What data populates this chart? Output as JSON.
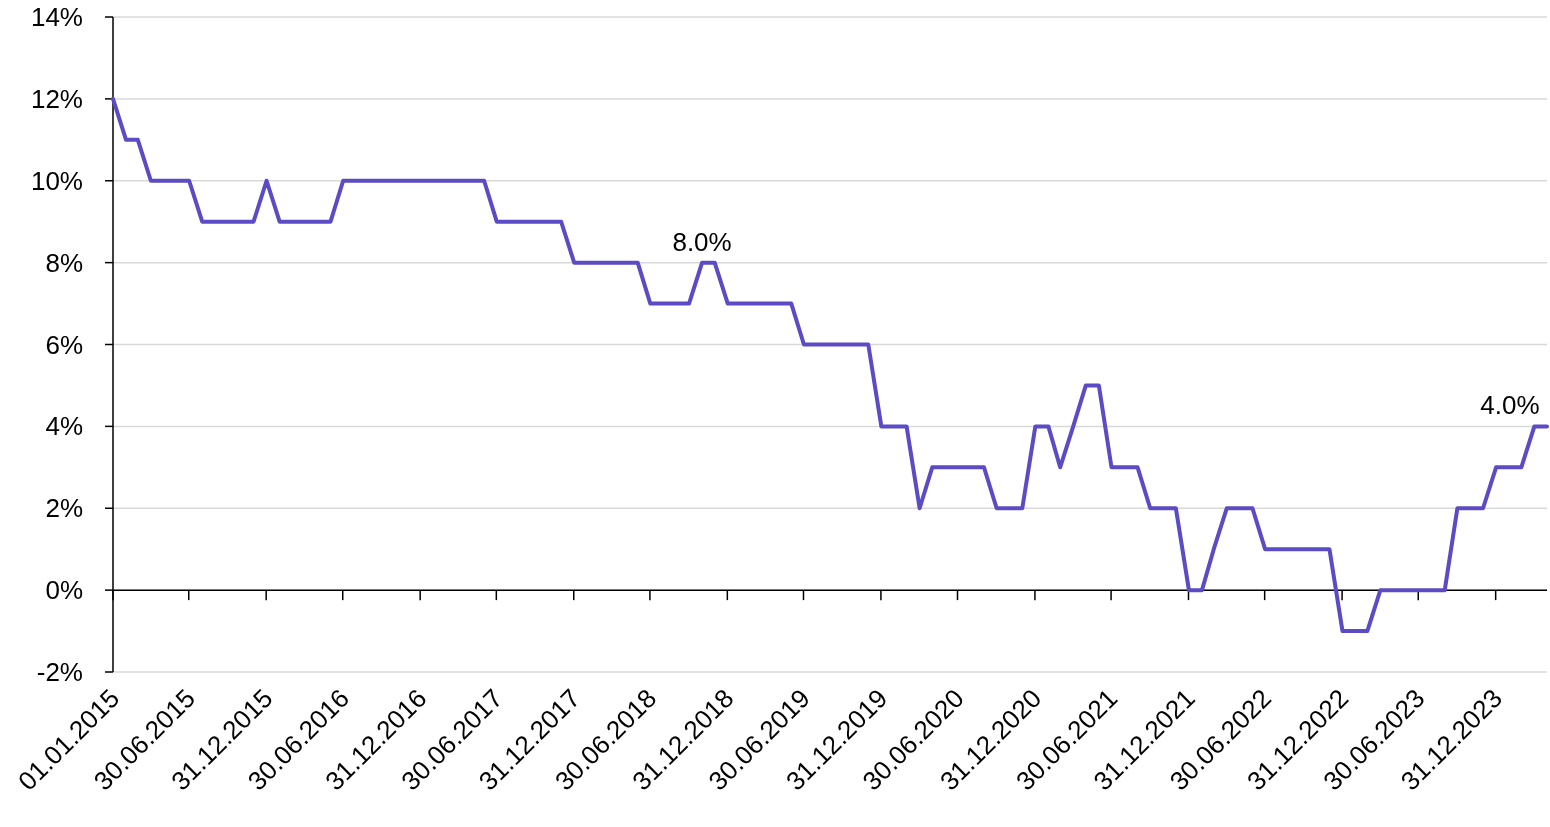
{
  "chart_data": {
    "type": "line",
    "x": [
      "2015-01",
      "2015-02",
      "2015-03",
      "2015-04",
      "2015-05",
      "2015-06",
      "2015-07",
      "2015-08",
      "2015-09",
      "2015-10",
      "2015-11",
      "2015-12",
      "2016-01",
      "2016-02",
      "2016-03",
      "2016-04",
      "2016-05",
      "2016-06",
      "2016-07",
      "2016-08",
      "2016-09",
      "2016-10",
      "2016-11",
      "2016-12",
      "2017-01",
      "2017-02",
      "2017-03",
      "2017-04",
      "2017-05",
      "2017-06",
      "2017-07",
      "2017-08",
      "2017-09",
      "2017-10",
      "2017-11",
      "2017-12",
      "2018-01",
      "2018-02",
      "2018-03",
      "2018-04",
      "2018-05",
      "2018-06",
      "2018-07",
      "2018-08",
      "2018-09",
      "2018-10",
      "2018-11",
      "2018-12",
      "2019-01",
      "2019-02",
      "2019-03",
      "2019-04",
      "2019-05",
      "2019-06",
      "2019-07",
      "2019-08",
      "2019-09",
      "2019-10",
      "2019-11",
      "2019-12",
      "2020-01",
      "2020-02",
      "2020-03",
      "2020-04",
      "2020-05",
      "2020-06",
      "2020-07",
      "2020-08",
      "2020-09",
      "2020-10",
      "2020-11",
      "2020-12",
      "2021-01",
      "2021-02",
      "2021-03",
      "2021-04",
      "2021-05",
      "2021-06",
      "2021-07",
      "2021-08",
      "2021-09",
      "2021-10",
      "2021-11",
      "2021-12",
      "2022-01",
      "2022-02",
      "2022-03",
      "2022-04",
      "2022-05",
      "2022-06",
      "2022-07",
      "2022-08",
      "2022-09",
      "2022-10",
      "2022-11",
      "2022-12",
      "2023-01",
      "2023-02",
      "2023-03",
      "2023-04",
      "2023-05",
      "2023-06",
      "2023-07",
      "2023-08",
      "2023-09",
      "2023-10",
      "2023-11",
      "2023-12",
      "2024-01",
      "2024-02",
      "2024-03",
      "2024-04",
      "2024-05"
    ],
    "series": [
      {
        "color": "#5b4bc4",
        "values": [
          12,
          11,
          11,
          10,
          10,
          10,
          10,
          9,
          9,
          9,
          9,
          9,
          10,
          9,
          9,
          9,
          9,
          9,
          10,
          10,
          10,
          10,
          10,
          10,
          10,
          10,
          10,
          10,
          10,
          10,
          9,
          9,
          9,
          9,
          9,
          9,
          8,
          8,
          8,
          8,
          8,
          8,
          7,
          7,
          7,
          7,
          8,
          8,
          7,
          7,
          7,
          7,
          7,
          7,
          6,
          6,
          6,
          6,
          6,
          6,
          4,
          4,
          4,
          2,
          3,
          3,
          3,
          3,
          3,
          2,
          2,
          2,
          4,
          4,
          3,
          4,
          5,
          5,
          3,
          3,
          3,
          2,
          2,
          2,
          0,
          0,
          1,
          2,
          2,
          2,
          1,
          1,
          1,
          1,
          1,
          1,
          -1,
          -1,
          -1,
          0,
          0,
          0,
          0,
          0,
          0,
          2,
          2,
          2,
          3,
          3,
          3,
          4,
          4
        ],
        "value_labels": [
          null,
          null,
          null,
          null,
          null,
          null,
          null,
          null,
          null,
          null,
          null,
          null,
          null,
          null,
          null,
          null,
          null,
          null,
          null,
          null,
          null,
          null,
          null,
          null,
          null,
          null,
          null,
          null,
          null,
          null,
          null,
          null,
          null,
          null,
          null,
          null,
          null,
          null,
          null,
          null,
          null,
          null,
          null,
          null,
          null,
          null,
          "8.0%",
          null,
          null,
          null,
          null,
          null,
          null,
          null,
          null,
          null,
          null,
          null,
          null,
          null,
          null,
          null,
          null,
          null,
          null,
          null,
          null,
          null,
          null,
          null,
          null,
          null,
          null,
          null,
          null,
          null,
          null,
          null,
          null,
          null,
          null,
          null,
          null,
          null,
          null,
          null,
          null,
          null,
          null,
          null,
          null,
          null,
          null,
          null,
          null,
          null,
          null,
          null,
          null,
          null,
          null,
          null,
          null,
          null,
          null,
          null,
          null,
          null,
          null,
          null,
          null,
          null,
          "4.0%"
        ]
      }
    ],
    "xlim": [
      "2015-01",
      "2024-05"
    ],
    "xticks": [
      {
        "value": "2015-01-01",
        "label": "01.01.2015"
      },
      {
        "value": "2015-06-30",
        "label": "30.06.2015"
      },
      {
        "value": "2015-12-31",
        "label": "31.12.2015"
      },
      {
        "value": "2016-06-30",
        "label": "30.06.2016"
      },
      {
        "value": "2016-12-31",
        "label": "31.12.2016"
      },
      {
        "value": "2017-06-30",
        "label": "30.06.2017"
      },
      {
        "value": "2017-12-31",
        "label": "31.12.2017"
      },
      {
        "value": "2018-06-30",
        "label": "30.06.2018"
      },
      {
        "value": "2018-12-31",
        "label": "31.12.2018"
      },
      {
        "value": "2019-06-30",
        "label": "30.06.2019"
      },
      {
        "value": "2019-12-31",
        "label": "31.12.2019"
      },
      {
        "value": "2020-06-30",
        "label": "30.06.2020"
      },
      {
        "value": "2020-12-31",
        "label": "31.12.2020"
      },
      {
        "value": "2021-06-30",
        "label": "30.06.2021"
      },
      {
        "value": "2021-12-31",
        "label": "31.12.2021"
      },
      {
        "value": "2022-06-30",
        "label": "30.06.2022"
      },
      {
        "value": "2022-12-31",
        "label": "31.12.2022"
      },
      {
        "value": "2023-06-30",
        "label": "30.06.2023"
      },
      {
        "value": "2023-12-31",
        "label": "31.12.2023"
      }
    ],
    "ylim": [
      -2,
      14
    ],
    "yticks": [
      {
        "value": -2,
        "label": "-2%"
      },
      {
        "value": 0,
        "label": "0%"
      },
      {
        "value": 2,
        "label": "2%"
      },
      {
        "value": 4,
        "label": "4%"
      },
      {
        "value": 6,
        "label": "6%"
      },
      {
        "value": 8,
        "label": "8%"
      },
      {
        "value": 10,
        "label": "10%"
      },
      {
        "value": 12,
        "label": "12%"
      },
      {
        "value": 14,
        "label": "14%"
      }
    ],
    "grid": "y",
    "marker": "none",
    "line_style": "solid"
  }
}
